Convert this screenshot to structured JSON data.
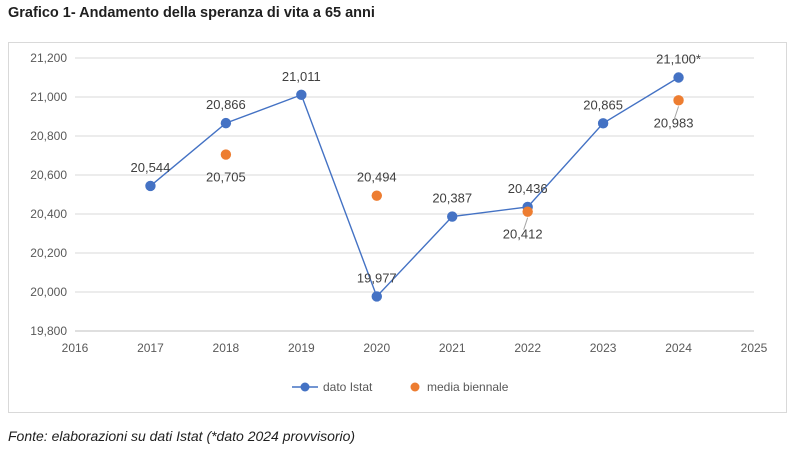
{
  "title": "Grafico 1- Andamento della speranza di vita a 65 anni",
  "footnote": "Fonte: elaborazioni su dati Istat (*dato 2024 provvisorio)",
  "chart_data": {
    "type": "line",
    "xlim": [
      2016,
      2025
    ],
    "ylim": [
      19800,
      21200
    ],
    "x_ticks": [
      2016,
      2017,
      2018,
      2019,
      2020,
      2021,
      2022,
      2023,
      2024,
      2025
    ],
    "x_tick_labels": [
      "2016",
      "2017",
      "2018",
      "2019",
      "2020",
      "2021",
      "2022",
      "2023",
      "2024",
      "2025"
    ],
    "y_ticks": [
      19800,
      20000,
      20200,
      20400,
      20600,
      20800,
      21000,
      21200
    ],
    "y_tick_labels": [
      "19,800",
      "20,000",
      "20,200",
      "20,400",
      "20,600",
      "20,800",
      "21,000",
      "21,200"
    ],
    "grid": "horizontal",
    "legend_position": "bottom",
    "series": [
      {
        "name": "dato Istat",
        "style": "line-with-markers",
        "color": "#4472C4",
        "points": [
          {
            "x": 2017,
            "y": 20544,
            "label": "20,544",
            "label_pos": "above"
          },
          {
            "x": 2018,
            "y": 20866,
            "label": "20,866",
            "label_pos": "above"
          },
          {
            "x": 2019,
            "y": 21011,
            "label": "21,011",
            "label_pos": "above"
          },
          {
            "x": 2020,
            "y": 19977,
            "label": "19,977",
            "label_pos": "above"
          },
          {
            "x": 2021,
            "y": 20387,
            "label": "20,387",
            "label_pos": "above"
          },
          {
            "x": 2022,
            "y": 20436,
            "label": "20,436",
            "label_pos": "above"
          },
          {
            "x": 2023,
            "y": 20865,
            "label": "20,865",
            "label_pos": "above"
          },
          {
            "x": 2024,
            "y": 21100,
            "label": "21,100*",
            "label_pos": "above"
          }
        ]
      },
      {
        "name": "media biennale",
        "style": "markers",
        "color": "#ED7D31",
        "points": [
          {
            "x": 2018,
            "y": 20705,
            "label": "20,705",
            "label_pos": "below"
          },
          {
            "x": 2020,
            "y": 20494,
            "label": "20,494",
            "label_pos": "above"
          },
          {
            "x": 2022,
            "y": 20412,
            "label": "20,412",
            "label_pos": "below"
          },
          {
            "x": 2024,
            "y": 20983,
            "label": "20,983",
            "label_pos": "below"
          }
        ]
      }
    ]
  }
}
